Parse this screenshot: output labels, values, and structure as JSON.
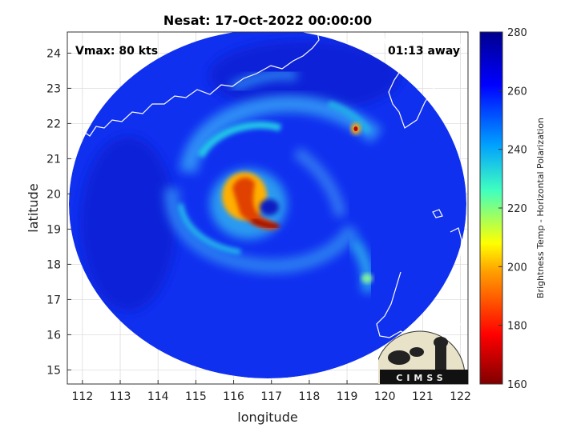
{
  "title": "Nesat: 17-Oct-2022 00:00:00",
  "vmax_text": "Vmax: 80 kts",
  "away_text": "01:13 away",
  "x_axis": {
    "label": "longitude",
    "ticks": [
      "112",
      "113",
      "114",
      "115",
      "116",
      "117",
      "118",
      "119",
      "120",
      "121",
      "122"
    ]
  },
  "y_axis": {
    "label": "latitude",
    "ticks": [
      "15",
      "16",
      "17",
      "18",
      "19",
      "20",
      "21",
      "22",
      "23",
      "24"
    ]
  },
  "colorbar": {
    "label": "Brightness Temp - Horizontal Polarization",
    "ticks": [
      "160",
      "180",
      "200",
      "220",
      "240",
      "260",
      "280"
    ],
    "range": [
      160,
      280
    ],
    "colors": [
      "#800000",
      "#ff0000",
      "#ffa000",
      "#ffff00",
      "#40ffc0",
      "#00a0ff",
      "#0000ff",
      "#00008f"
    ]
  },
  "logo_text": "CIMSS",
  "map": {
    "lon_range": [
      111.6,
      122.2
    ],
    "lat_range": [
      14.6,
      24.6
    ],
    "storm_center": {
      "lon": 116.8,
      "lat": 19.5
    },
    "background_temp": 265
  }
}
